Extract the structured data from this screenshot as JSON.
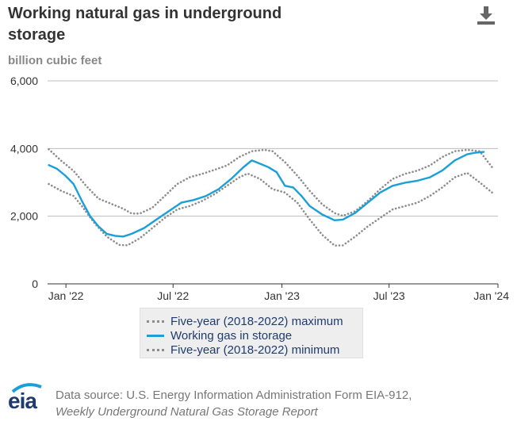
{
  "title": "Working natural gas in underground storage",
  "subtitle": "billion cubic feet",
  "download_icon": "download-icon",
  "legend": {
    "items": [
      {
        "label": "Five-year (2018-2022) maximum",
        "style": "dotted",
        "color": "#8c8c8c"
      },
      {
        "label": "Working gas in storage",
        "style": "solid",
        "color": "#1a9fd9"
      },
      {
        "label": "Five-year (2018-2022) minimum",
        "style": "dotted",
        "color": "#8c8c8c"
      }
    ]
  },
  "source": {
    "line1": "Data source: U.S. Energy Information Administration Form EIA-912,",
    "line2": "Weekly Underground Natural Gas Storage Report"
  },
  "logo": {
    "text": "eia"
  },
  "chart_data": {
    "type": "line",
    "title": "Working natural gas in underground storage",
    "ylabel": "billion cubic feet",
    "ylim": [
      0,
      6000
    ],
    "yticks": [
      0,
      2000,
      4000,
      6000
    ],
    "ytick_labels": [
      "0",
      "2,000",
      "4,000",
      "6,000"
    ],
    "xlim": [
      "2021-12-01",
      "2024-01-01"
    ],
    "xticks": [
      "2022-01-01",
      "2022-07-01",
      "2023-01-01",
      "2023-07-01",
      "2024-01-01"
    ],
    "xtick_labels": [
      "Jan '22",
      "Jul '22",
      "Jan '23",
      "Jul '23",
      "Jan '24"
    ],
    "grid": true,
    "legend_position": "bottom",
    "series": [
      {
        "name": "Five-year (2018-2022) maximum",
        "color": "#8c8c8c",
        "style": "dotted",
        "points": [
          [
            "2021-12-03",
            3980
          ],
          [
            "2021-12-24",
            3640
          ],
          [
            "2022-01-14",
            3340
          ],
          [
            "2022-02-04",
            2900
          ],
          [
            "2022-02-25",
            2520
          ],
          [
            "2022-03-18",
            2370
          ],
          [
            "2022-04-08",
            2220
          ],
          [
            "2022-04-22",
            2080
          ],
          [
            "2022-05-06",
            2080
          ],
          [
            "2022-05-27",
            2250
          ],
          [
            "2022-06-17",
            2600
          ],
          [
            "2022-07-08",
            2950
          ],
          [
            "2022-07-29",
            3150
          ],
          [
            "2022-08-19",
            3250
          ],
          [
            "2022-09-09",
            3370
          ],
          [
            "2022-09-30",
            3500
          ],
          [
            "2022-10-21",
            3750
          ],
          [
            "2022-11-11",
            3920
          ],
          [
            "2022-12-02",
            3960
          ],
          [
            "2022-12-16",
            3920
          ],
          [
            "2023-01-06",
            3600
          ],
          [
            "2023-01-27",
            3200
          ],
          [
            "2023-02-17",
            2750
          ],
          [
            "2023-03-10",
            2350
          ],
          [
            "2023-03-31",
            2090
          ],
          [
            "2023-04-14",
            2010
          ],
          [
            "2023-05-05",
            2150
          ],
          [
            "2023-05-26",
            2450
          ],
          [
            "2023-06-16",
            2800
          ],
          [
            "2023-07-07",
            3100
          ],
          [
            "2023-07-28",
            3250
          ],
          [
            "2023-08-18",
            3350
          ],
          [
            "2023-09-08",
            3500
          ],
          [
            "2023-09-29",
            3750
          ],
          [
            "2023-10-20",
            3920
          ],
          [
            "2023-11-10",
            3960
          ],
          [
            "2023-12-01",
            3920
          ],
          [
            "2023-12-22",
            3450
          ]
        ]
      },
      {
        "name": "Working gas in storage",
        "color": "#1a9fd9",
        "style": "solid",
        "points": [
          [
            "2021-12-03",
            3510
          ],
          [
            "2021-12-17",
            3400
          ],
          [
            "2021-12-31",
            3200
          ],
          [
            "2022-01-14",
            2950
          ],
          [
            "2022-01-28",
            2450
          ],
          [
            "2022-02-11",
            2000
          ],
          [
            "2022-02-25",
            1700
          ],
          [
            "2022-03-11",
            1480
          ],
          [
            "2022-03-25",
            1420
          ],
          [
            "2022-04-08",
            1400
          ],
          [
            "2022-04-22",
            1480
          ],
          [
            "2022-05-13",
            1650
          ],
          [
            "2022-06-03",
            1900
          ],
          [
            "2022-06-24",
            2150
          ],
          [
            "2022-07-15",
            2400
          ],
          [
            "2022-08-05",
            2480
          ],
          [
            "2022-08-26",
            2600
          ],
          [
            "2022-09-16",
            2800
          ],
          [
            "2022-10-07",
            3100
          ],
          [
            "2022-10-28",
            3450
          ],
          [
            "2022-11-11",
            3650
          ],
          [
            "2022-11-25",
            3550
          ],
          [
            "2022-12-09",
            3450
          ],
          [
            "2022-12-23",
            3300
          ],
          [
            "2023-01-06",
            2900
          ],
          [
            "2023-01-20",
            2850
          ],
          [
            "2023-02-03",
            2600
          ],
          [
            "2023-02-17",
            2300
          ],
          [
            "2023-03-10",
            2050
          ],
          [
            "2023-03-31",
            1880
          ],
          [
            "2023-04-14",
            1900
          ],
          [
            "2023-05-05",
            2100
          ],
          [
            "2023-05-26",
            2400
          ],
          [
            "2023-06-16",
            2700
          ],
          [
            "2023-07-07",
            2900
          ],
          [
            "2023-07-28",
            2990
          ],
          [
            "2023-08-18",
            3050
          ],
          [
            "2023-09-08",
            3150
          ],
          [
            "2023-09-29",
            3350
          ],
          [
            "2023-10-20",
            3650
          ],
          [
            "2023-11-10",
            3830
          ],
          [
            "2023-11-24",
            3880
          ],
          [
            "2023-12-08",
            3900
          ]
        ]
      },
      {
        "name": "Five-year (2018-2022) minimum",
        "color": "#8c8c8c",
        "style": "dotted",
        "points": [
          [
            "2021-12-03",
            2950
          ],
          [
            "2021-12-24",
            2750
          ],
          [
            "2022-01-14",
            2600
          ],
          [
            "2022-01-28",
            2300
          ],
          [
            "2022-02-18",
            1800
          ],
          [
            "2022-03-11",
            1400
          ],
          [
            "2022-04-01",
            1150
          ],
          [
            "2022-04-15",
            1140
          ],
          [
            "2022-05-06",
            1350
          ],
          [
            "2022-05-27",
            1650
          ],
          [
            "2022-06-17",
            1950
          ],
          [
            "2022-07-08",
            2200
          ],
          [
            "2022-07-29",
            2300
          ],
          [
            "2022-08-19",
            2450
          ],
          [
            "2022-09-09",
            2650
          ],
          [
            "2022-09-30",
            2900
          ],
          [
            "2022-10-21",
            3150
          ],
          [
            "2022-11-04",
            3260
          ],
          [
            "2022-11-25",
            3100
          ],
          [
            "2022-12-16",
            2800
          ],
          [
            "2023-01-06",
            2700
          ],
          [
            "2023-01-27",
            2400
          ],
          [
            "2023-02-17",
            1900
          ],
          [
            "2023-03-10",
            1450
          ],
          [
            "2023-03-31",
            1130
          ],
          [
            "2023-04-14",
            1140
          ],
          [
            "2023-05-05",
            1400
          ],
          [
            "2023-05-26",
            1700
          ],
          [
            "2023-06-16",
            1950
          ],
          [
            "2023-07-07",
            2200
          ],
          [
            "2023-07-28",
            2300
          ],
          [
            "2023-08-18",
            2400
          ],
          [
            "2023-09-08",
            2600
          ],
          [
            "2023-09-29",
            2850
          ],
          [
            "2023-10-20",
            3150
          ],
          [
            "2023-11-10",
            3280
          ],
          [
            "2023-12-01",
            3000
          ],
          [
            "2023-12-22",
            2700
          ]
        ]
      }
    ]
  }
}
